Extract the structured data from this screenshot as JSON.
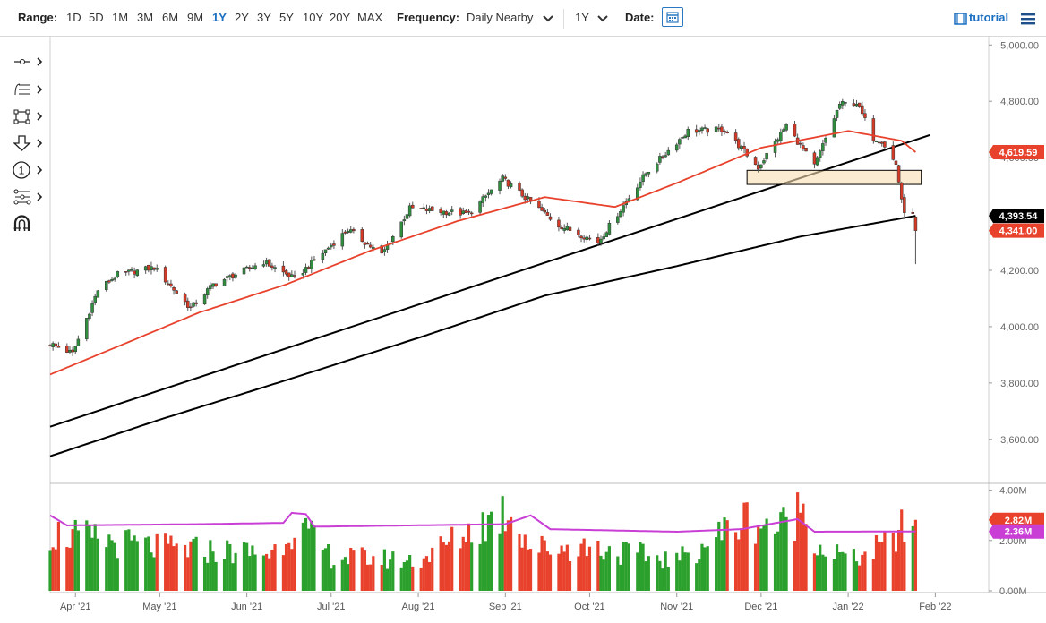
{
  "toolbar": {
    "range_label": "Range:",
    "ranges": [
      "1D",
      "5D",
      "1M",
      "3M",
      "6M",
      "9M",
      "1Y",
      "2Y",
      "3Y",
      "5Y",
      "10Y",
      "20Y",
      "MAX"
    ],
    "active_range": "1Y",
    "frequency_label": "Frequency:",
    "frequency_value": "Daily Nearby",
    "period_value": "1Y",
    "date_label": "Date:",
    "tutorial_label": "tutorial",
    "icons": [
      "calendar-icon",
      "chevron-down-icon",
      "film-icon",
      "menu-icon"
    ]
  },
  "tools": [
    "crosshair-tool-icon",
    "fibonacci-tool-icon",
    "rectangle-tool-icon",
    "arrow-down-tool-icon",
    "number-marker-tool-icon",
    "pattern-tool-icon",
    "magnet-tool-icon"
  ],
  "chart_data": [
    {
      "type": "candlestick",
      "title": "",
      "xlabel": "",
      "ylabel": "",
      "ylim": [
        3450,
        5020
      ],
      "y_ticks": [
        "5,000.00",
        "4,800.00",
        "4,600.00",
        "4,400.00",
        "4,200.00",
        "4,000.00",
        "3,800.00",
        "3,600.00"
      ],
      "x_ticks": [
        "Apr '21",
        "May '21",
        "Jun '21",
        "Jul '21",
        "Aug '21",
        "Sep '21",
        "Oct '21",
        "Nov '21",
        "Dec '21",
        "Jan '22",
        "Feb '22"
      ],
      "x_range": [
        "2021-03-23",
        "2022-02-20"
      ],
      "grid": false,
      "price_labels": [
        {
          "text": "4,619.59",
          "value": 4619.59,
          "color": "#e8412c"
        },
        {
          "text": "4,393.54",
          "value": 4393.54,
          "color": "#000000"
        },
        {
          "text": "4,341.00",
          "value": 4341.0,
          "color": "#e8412c"
        }
      ],
      "close_anchors": [
        [
          "2021-03-23",
          3940
        ],
        [
          "2021-03-31",
          3905
        ],
        [
          "2021-04-09",
          4130
        ],
        [
          "2021-04-16",
          4185
        ],
        [
          "2021-04-29",
          4210
        ],
        [
          "2021-05-12",
          4065
        ],
        [
          "2021-05-20",
          4150
        ],
        [
          "2021-06-07",
          4230
        ],
        [
          "2021-06-18",
          4170
        ],
        [
          "2021-07-07",
          4345
        ],
        [
          "2021-07-19",
          4255
        ],
        [
          "2021-07-29",
          4420
        ],
        [
          "2021-08-19",
          4400
        ],
        [
          "2021-08-31",
          4525
        ],
        [
          "2021-09-20",
          4360
        ],
        [
          "2021-10-04",
          4300
        ],
        [
          "2021-10-21",
          4545
        ],
        [
          "2021-11-05",
          4695
        ],
        [
          "2021-11-18",
          4700
        ],
        [
          "2021-11-30",
          4565
        ],
        [
          "2021-12-10",
          4715
        ],
        [
          "2021-12-20",
          4570
        ],
        [
          "2021-12-29",
          4790
        ],
        [
          "2022-01-04",
          4795
        ],
        [
          "2022-01-10",
          4670
        ],
        [
          "2022-01-13",
          4660
        ],
        [
          "2022-01-18",
          4575
        ],
        [
          "2022-01-21",
          4395
        ],
        [
          "2022-01-24",
          4410
        ],
        [
          "2022-01-25",
          4341
        ]
      ],
      "ma50": [
        [
          "2021-03-23",
          3830
        ],
        [
          "2021-04-15",
          3925
        ],
        [
          "2021-05-15",
          4050
        ],
        [
          "2021-06-15",
          4150
        ],
        [
          "2021-07-15",
          4270
        ],
        [
          "2021-08-15",
          4375
        ],
        [
          "2021-09-15",
          4460
        ],
        [
          "2021-10-10",
          4425
        ],
        [
          "2021-11-01",
          4510
        ],
        [
          "2021-12-01",
          4635
        ],
        [
          "2022-01-01",
          4695
        ],
        [
          "2022-01-20",
          4660
        ],
        [
          "2022-01-25",
          4619.59
        ]
      ],
      "ma200": [
        [
          "2021-03-23",
          3540
        ],
        [
          "2021-05-01",
          3670
        ],
        [
          "2021-06-15",
          3810
        ],
        [
          "2021-08-01",
          3960
        ],
        [
          "2021-09-15",
          4110
        ],
        [
          "2021-11-01",
          4215
        ],
        [
          "2021-12-15",
          4320
        ],
        [
          "2022-01-25",
          4393.54
        ]
      ],
      "trendline": [
        [
          "2021-03-23",
          3645
        ],
        [
          "2022-01-30",
          4680
        ]
      ],
      "support_zone": {
        "from": "2021-11-26",
        "to": "2022-01-27",
        "low": 4505,
        "high": 4555
      }
    },
    {
      "type": "bar",
      "title": "",
      "ylim": [
        0,
        4.2
      ],
      "y_ticks": [
        "4.00M",
        "2.00M",
        "0.00M"
      ],
      "value_labels": [
        {
          "text": "2.82M",
          "value": 2.82,
          "color": "#e8412c"
        },
        {
          "text": "2.36M",
          "value": 2.36,
          "color": "#c93fd6"
        }
      ],
      "volume_anchors": [
        [
          "2021-03-23",
          2.3
        ],
        [
          "2021-05-01",
          1.7
        ],
        [
          "2021-06-10",
          1.5
        ],
        [
          "2021-06-18",
          2.7
        ],
        [
          "2021-07-01",
          1.35
        ],
        [
          "2021-08-01",
          1.2
        ],
        [
          "2021-09-03",
          3.3
        ],
        [
          "2021-09-10",
          1.7
        ],
        [
          "2021-10-01",
          1.75
        ],
        [
          "2021-11-01",
          1.2
        ],
        [
          "2021-11-26",
          2.9
        ],
        [
          "2021-12-08",
          2.5
        ],
        [
          "2021-12-16",
          3.4
        ],
        [
          "2021-12-22",
          1.7
        ],
        [
          "2022-01-03",
          1.25
        ],
        [
          "2022-01-14",
          1.8
        ],
        [
          "2022-01-24",
          2.82
        ]
      ],
      "volume_ma": [
        [
          "2021-03-23",
          3.0
        ],
        [
          "2021-03-29",
          2.6
        ],
        [
          "2021-05-15",
          2.65
        ],
        [
          "2021-06-14",
          2.7
        ],
        [
          "2021-06-17",
          3.1
        ],
        [
          "2021-06-22",
          3.05
        ],
        [
          "2021-06-25",
          2.55
        ],
        [
          "2021-09-01",
          2.65
        ],
        [
          "2021-09-10",
          3.0
        ],
        [
          "2021-09-17",
          2.45
        ],
        [
          "2021-11-01",
          2.35
        ],
        [
          "2021-11-24",
          2.45
        ],
        [
          "2021-12-14",
          2.85
        ],
        [
          "2021-12-20",
          2.35
        ],
        [
          "2022-01-25",
          2.36
        ]
      ]
    }
  ]
}
